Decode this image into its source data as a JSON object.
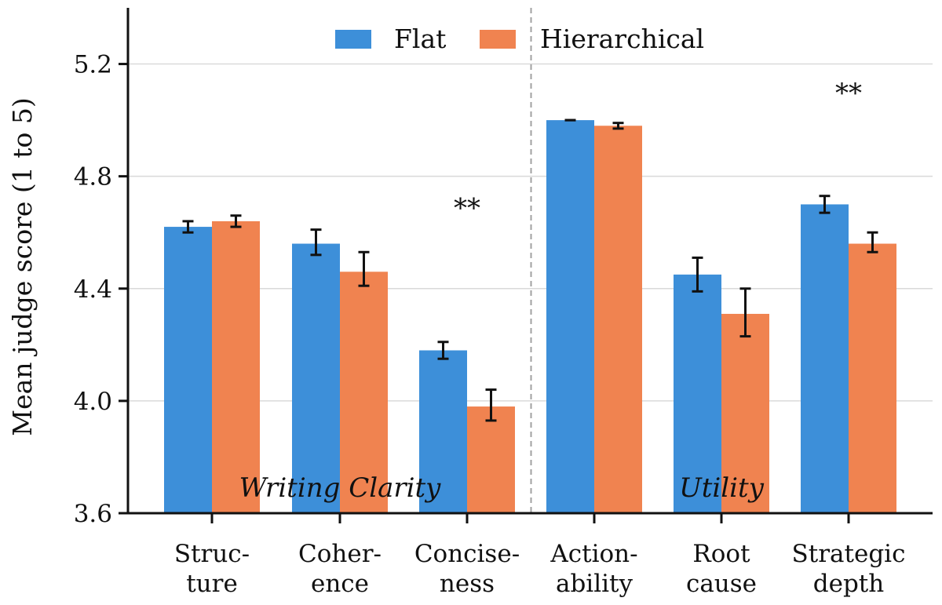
{
  "chart_data": {
    "type": "bar",
    "ylabel": "Mean judge score (1 to 5)",
    "ylim": [
      3.6,
      5.4
    ],
    "yticks": [
      "3.6",
      "4.0",
      "4.4",
      "4.8",
      "5.2"
    ],
    "grid": "horizontal",
    "legend_position": "top-center",
    "categories": [
      [
        "Struc-",
        "ture"
      ],
      [
        "Coher-",
        "ence"
      ],
      [
        "Concise-",
        "ness"
      ],
      [
        "Action-",
        "ability"
      ],
      [
        "Root",
        "cause"
      ],
      [
        "Strategic",
        "depth"
      ]
    ],
    "series": [
      {
        "name": "Flat",
        "color": "#3d8fd9",
        "values": [
          4.62,
          4.56,
          4.18,
          5.0,
          4.45,
          4.7
        ],
        "err_low": [
          4.6,
          4.52,
          4.15,
          5.0,
          4.39,
          4.67
        ],
        "err_high": [
          4.64,
          4.61,
          4.21,
          5.0,
          4.51,
          4.73
        ]
      },
      {
        "name": "Hierarchical",
        "color": "#f08350",
        "values": [
          4.64,
          4.46,
          3.98,
          4.98,
          4.31,
          4.56
        ],
        "err_low": [
          4.62,
          4.41,
          3.93,
          4.97,
          4.23,
          4.53
        ],
        "err_high": [
          4.66,
          4.53,
          4.04,
          4.99,
          4.4,
          4.6
        ]
      }
    ],
    "groups": [
      {
        "label": "Writing Clarity",
        "categories": [
          0,
          1,
          2
        ]
      },
      {
        "label": "Utility",
        "categories": [
          3,
          4,
          5
        ]
      }
    ],
    "significance": [
      {
        "category": 2,
        "label": "**",
        "y": 4.7
      },
      {
        "category": 5,
        "label": "**",
        "y": 5.11
      }
    ]
  }
}
